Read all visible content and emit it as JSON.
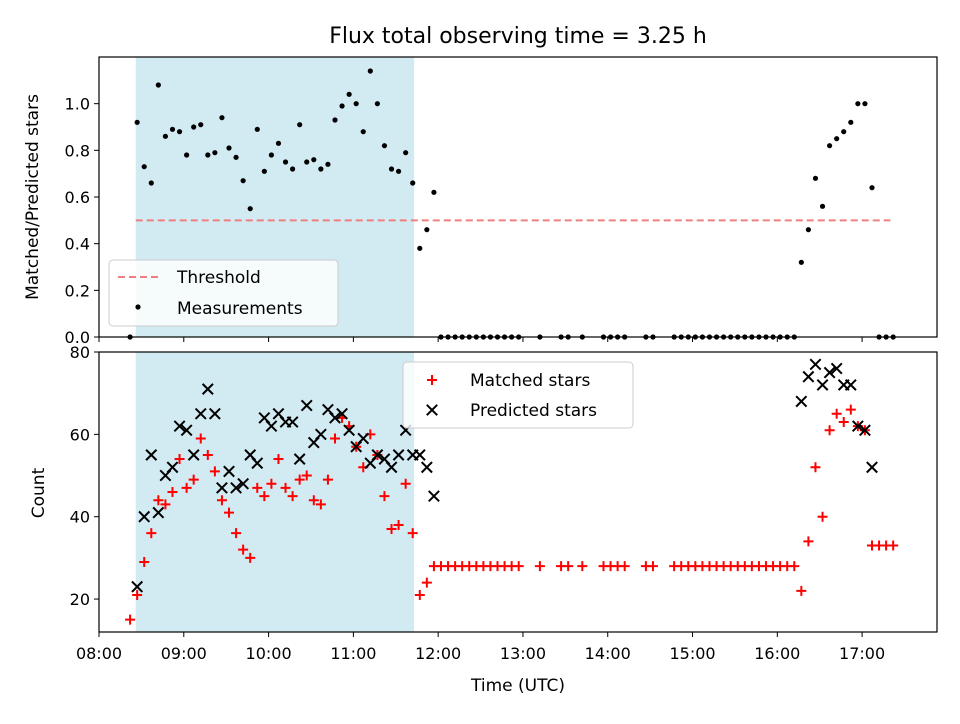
{
  "chart_data": [
    {
      "type": "scatter",
      "title": "Flux total observing time = 3.25 h",
      "xlabel": "",
      "ylabel": "Matched/Predicted stars",
      "xlim": [
        "08:00",
        "17:53"
      ],
      "ylim": [
        0,
        1.2
      ],
      "yticks": [
        "0.0",
        "0.2",
        "0.4",
        "0.6",
        "0.8",
        "1.0"
      ],
      "shaded_region": {
        "x": [
          "08:26",
          "11:43"
        ],
        "color": "#add8e6"
      },
      "threshold_line": {
        "name": "Threshold",
        "y": 0.5,
        "x": [
          "08:26",
          "17:20"
        ],
        "color": "#f08080",
        "style": "dashed"
      },
      "series": [
        {
          "name": "Measurements",
          "color": "#000000",
          "marker": "dot",
          "points": [
            [
              "08:22",
              0.0
            ],
            [
              "08:27",
              0.92
            ],
            [
              "08:32",
              0.73
            ],
            [
              "08:37",
              0.66
            ],
            [
              "08:42",
              1.08
            ],
            [
              "08:47",
              0.86
            ],
            [
              "08:52",
              0.89
            ],
            [
              "08:57",
              0.88
            ],
            [
              "09:02",
              0.78
            ],
            [
              "09:07",
              0.9
            ],
            [
              "09:12",
              0.91
            ],
            [
              "09:17",
              0.78
            ],
            [
              "09:22",
              0.79
            ],
            [
              "09:27",
              0.94
            ],
            [
              "09:32",
              0.81
            ],
            [
              "09:37",
              0.77
            ],
            [
              "09:42",
              0.67
            ],
            [
              "09:47",
              0.55
            ],
            [
              "09:52",
              0.89
            ],
            [
              "09:57",
              0.71
            ],
            [
              "10:02",
              0.78
            ],
            [
              "10:07",
              0.83
            ],
            [
              "10:12",
              0.75
            ],
            [
              "10:17",
              0.72
            ],
            [
              "10:22",
              0.91
            ],
            [
              "10:27",
              0.75
            ],
            [
              "10:32",
              0.76
            ],
            [
              "10:37",
              0.72
            ],
            [
              "10:42",
              0.74
            ],
            [
              "10:47",
              0.93
            ],
            [
              "10:52",
              0.99
            ],
            [
              "10:57",
              1.04
            ],
            [
              "11:02",
              1.0
            ],
            [
              "11:07",
              0.88
            ],
            [
              "11:12",
              1.14
            ],
            [
              "11:17",
              1.0
            ],
            [
              "11:22",
              0.82
            ],
            [
              "11:27",
              0.72
            ],
            [
              "11:32",
              0.71
            ],
            [
              "11:37",
              0.79
            ],
            [
              "11:42",
              0.66
            ],
            [
              "11:47",
              0.38
            ],
            [
              "11:52",
              0.46
            ],
            [
              "11:57",
              0.62
            ],
            [
              "12:02",
              0.0
            ],
            [
              "12:07",
              0.0
            ],
            [
              "12:12",
              0.0
            ],
            [
              "12:17",
              0.0
            ],
            [
              "12:22",
              0.0
            ],
            [
              "12:27",
              0.0
            ],
            [
              "12:32",
              0.0
            ],
            [
              "12:37",
              0.0
            ],
            [
              "12:42",
              0.0
            ],
            [
              "12:47",
              0.0
            ],
            [
              "12:52",
              0.0
            ],
            [
              "12:57",
              0.0
            ],
            [
              "13:12",
              0.0
            ],
            [
              "13:27",
              0.0
            ],
            [
              "13:32",
              0.0
            ],
            [
              "13:42",
              0.0
            ],
            [
              "13:57",
              0.0
            ],
            [
              "14:02",
              0.0
            ],
            [
              "14:07",
              0.0
            ],
            [
              "14:12",
              0.0
            ],
            [
              "14:27",
              0.0
            ],
            [
              "14:32",
              0.0
            ],
            [
              "14:47",
              0.0
            ],
            [
              "14:52",
              0.0
            ],
            [
              "14:57",
              0.0
            ],
            [
              "15:02",
              0.0
            ],
            [
              "15:07",
              0.0
            ],
            [
              "15:12",
              0.0
            ],
            [
              "15:17",
              0.0
            ],
            [
              "15:22",
              0.0
            ],
            [
              "15:27",
              0.0
            ],
            [
              "15:32",
              0.0
            ],
            [
              "15:37",
              0.0
            ],
            [
              "15:42",
              0.0
            ],
            [
              "15:47",
              0.0
            ],
            [
              "15:52",
              0.0
            ],
            [
              "15:57",
              0.0
            ],
            [
              "16:02",
              0.0
            ],
            [
              "16:07",
              0.0
            ],
            [
              "16:12",
              0.0
            ],
            [
              "16:17",
              0.32
            ],
            [
              "16:22",
              0.46
            ],
            [
              "16:27",
              0.68
            ],
            [
              "16:32",
              0.56
            ],
            [
              "16:37",
              0.82
            ],
            [
              "16:42",
              0.85
            ],
            [
              "16:47",
              0.88
            ],
            [
              "16:52",
              0.92
            ],
            [
              "16:57",
              1.0
            ],
            [
              "17:02",
              1.0
            ],
            [
              "17:07",
              0.64
            ],
            [
              "17:12",
              0.0
            ],
            [
              "17:17",
              0.0
            ],
            [
              "17:22",
              0.0
            ]
          ]
        }
      ],
      "legend": {
        "position": "lower-left",
        "entries": [
          "Threshold",
          "Measurements"
        ]
      }
    },
    {
      "type": "scatter",
      "title": "",
      "xlabel": "Time (UTC)",
      "ylabel": "Count",
      "xlim": [
        "08:00",
        "17:53"
      ],
      "ylim": [
        12,
        80
      ],
      "yticks": [
        "20",
        "40",
        "60",
        "80"
      ],
      "xticks": [
        "08:00",
        "09:00",
        "10:00",
        "11:00",
        "12:00",
        "13:00",
        "14:00",
        "15:00",
        "16:00",
        "17:00"
      ],
      "shaded_region": {
        "x": [
          "08:26",
          "11:43"
        ],
        "color": "#add8e6"
      },
      "series": [
        {
          "name": "Matched stars",
          "color": "#ff0000",
          "marker": "plus",
          "points": [
            [
              "08:22",
              15
            ],
            [
              "08:27",
              21
            ],
            [
              "08:32",
              29
            ],
            [
              "08:37",
              36
            ],
            [
              "08:42",
              44
            ],
            [
              "08:47",
              43
            ],
            [
              "08:52",
              46
            ],
            [
              "08:57",
              54
            ],
            [
              "09:02",
              47
            ],
            [
              "09:07",
              49
            ],
            [
              "09:12",
              59
            ],
            [
              "09:17",
              55
            ],
            [
              "09:22",
              51
            ],
            [
              "09:27",
              44
            ],
            [
              "09:32",
              41
            ],
            [
              "09:37",
              36
            ],
            [
              "09:42",
              32
            ],
            [
              "09:47",
              30
            ],
            [
              "09:52",
              47
            ],
            [
              "09:57",
              45
            ],
            [
              "10:02",
              48
            ],
            [
              "10:07",
              54
            ],
            [
              "10:12",
              47
            ],
            [
              "10:17",
              45
            ],
            [
              "10:22",
              49
            ],
            [
              "10:27",
              50
            ],
            [
              "10:32",
              44
            ],
            [
              "10:37",
              43
            ],
            [
              "10:42",
              49
            ],
            [
              "10:47",
              59
            ],
            [
              "10:52",
              64
            ],
            [
              "10:57",
              62
            ],
            [
              "11:02",
              57
            ],
            [
              "11:07",
              52
            ],
            [
              "11:12",
              60
            ],
            [
              "11:17",
              55
            ],
            [
              "11:22",
              45
            ],
            [
              "11:27",
              37
            ],
            [
              "11:32",
              38
            ],
            [
              "11:37",
              48
            ],
            [
              "11:42",
              36
            ],
            [
              "11:47",
              21
            ],
            [
              "11:52",
              24
            ],
            [
              "11:57",
              28
            ],
            [
              "12:02",
              28
            ],
            [
              "12:07",
              28
            ],
            [
              "12:12",
              28
            ],
            [
              "12:17",
              28
            ],
            [
              "12:22",
              28
            ],
            [
              "12:27",
              28
            ],
            [
              "12:32",
              28
            ],
            [
              "12:37",
              28
            ],
            [
              "12:42",
              28
            ],
            [
              "12:47",
              28
            ],
            [
              "12:52",
              28
            ],
            [
              "12:57",
              28
            ],
            [
              "13:12",
              28
            ],
            [
              "13:27",
              28
            ],
            [
              "13:32",
              28
            ],
            [
              "13:42",
              28
            ],
            [
              "13:57",
              28
            ],
            [
              "14:02",
              28
            ],
            [
              "14:07",
              28
            ],
            [
              "14:12",
              28
            ],
            [
              "14:27",
              28
            ],
            [
              "14:32",
              28
            ],
            [
              "14:47",
              28
            ],
            [
              "14:52",
              28
            ],
            [
              "14:57",
              28
            ],
            [
              "15:02",
              28
            ],
            [
              "15:07",
              28
            ],
            [
              "15:12",
              28
            ],
            [
              "15:17",
              28
            ],
            [
              "15:22",
              28
            ],
            [
              "15:27",
              28
            ],
            [
              "15:32",
              28
            ],
            [
              "15:37",
              28
            ],
            [
              "15:42",
              28
            ],
            [
              "15:47",
              28
            ],
            [
              "15:52",
              28
            ],
            [
              "15:57",
              28
            ],
            [
              "16:02",
              28
            ],
            [
              "16:07",
              28
            ],
            [
              "16:12",
              28
            ],
            [
              "16:17",
              22
            ],
            [
              "16:22",
              34
            ],
            [
              "16:27",
              52
            ],
            [
              "16:32",
              40
            ],
            [
              "16:37",
              61
            ],
            [
              "16:42",
              65
            ],
            [
              "16:47",
              63
            ],
            [
              "16:52",
              66
            ],
            [
              "16:57",
              62
            ],
            [
              "17:02",
              61
            ],
            [
              "17:07",
              33
            ],
            [
              "17:12",
              33
            ],
            [
              "17:17",
              33
            ],
            [
              "17:22",
              33
            ]
          ]
        },
        {
          "name": "Predicted stars",
          "color": "#000000",
          "marker": "x",
          "points": [
            [
              "08:27",
              23
            ],
            [
              "08:32",
              40
            ],
            [
              "08:37",
              55
            ],
            [
              "08:42",
              41
            ],
            [
              "08:47",
              50
            ],
            [
              "08:52",
              52
            ],
            [
              "08:57",
              62
            ],
            [
              "09:02",
              61
            ],
            [
              "09:07",
              55
            ],
            [
              "09:12",
              65
            ],
            [
              "09:17",
              71
            ],
            [
              "09:22",
              65
            ],
            [
              "09:27",
              47
            ],
            [
              "09:32",
              51
            ],
            [
              "09:37",
              47
            ],
            [
              "09:42",
              48
            ],
            [
              "09:47",
              55
            ],
            [
              "09:52",
              53
            ],
            [
              "09:57",
              64
            ],
            [
              "10:02",
              62
            ],
            [
              "10:07",
              65
            ],
            [
              "10:12",
              63
            ],
            [
              "10:17",
              63
            ],
            [
              "10:22",
              54
            ],
            [
              "10:27",
              67
            ],
            [
              "10:32",
              58
            ],
            [
              "10:37",
              60
            ],
            [
              "10:42",
              66
            ],
            [
              "10:47",
              64
            ],
            [
              "10:52",
              65
            ],
            [
              "10:57",
              61
            ],
            [
              "11:02",
              57
            ],
            [
              "11:07",
              59
            ],
            [
              "11:12",
              53
            ],
            [
              "11:17",
              55
            ],
            [
              "11:22",
              54
            ],
            [
              "11:27",
              52
            ],
            [
              "11:32",
              55
            ],
            [
              "11:37",
              61
            ],
            [
              "11:42",
              55
            ],
            [
              "11:47",
              55
            ],
            [
              "11:52",
              52
            ],
            [
              "11:57",
              45
            ],
            [
              "16:17",
              68
            ],
            [
              "16:22",
              74
            ],
            [
              "16:27",
              77
            ],
            [
              "16:32",
              72
            ],
            [
              "16:37",
              75
            ],
            [
              "16:42",
              76
            ],
            [
              "16:47",
              72
            ],
            [
              "16:52",
              72
            ],
            [
              "16:57",
              62
            ],
            [
              "17:02",
              61
            ],
            [
              "17:07",
              52
            ]
          ]
        }
      ],
      "legend": {
        "position": "top-center",
        "entries": [
          "Matched stars",
          "Predicted stars"
        ]
      }
    }
  ]
}
